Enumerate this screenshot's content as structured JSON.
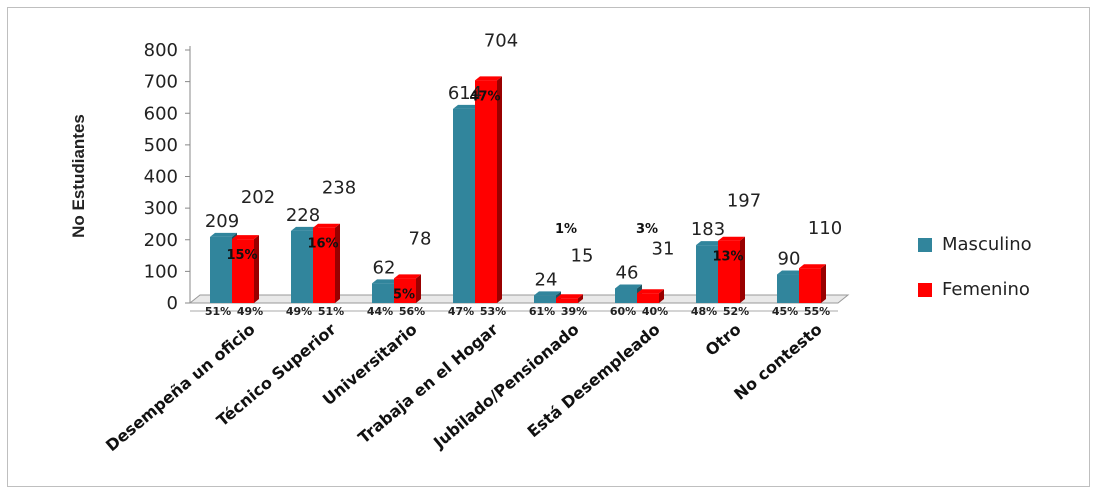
{
  "chart_data": {
    "type": "bar",
    "ylabel": "No Estudiantes",
    "ylim": [
      0,
      800
    ],
    "yticks": [
      "0",
      "100",
      "200",
      "300",
      "400",
      "500",
      "600",
      "700",
      "800"
    ],
    "categories": [
      "Desempeña un oficio",
      "Técnico Superior",
      "Universitario",
      "Trabaja en el Hogar",
      "Jubilado/Pensionado",
      "Está Desempleado",
      "Otro",
      "No contesto"
    ],
    "series": [
      {
        "name": "Masculino",
        "color": "#31859c",
        "values": [
          209,
          228,
          62,
          614,
          24,
          46,
          183,
          90
        ],
        "value_labels": [
          "209",
          "228",
          "62",
          "614",
          "24",
          "46",
          "183",
          "90"
        ],
        "pct_labels": [
          "51%",
          "49%",
          "44%",
          "47%",
          "61%",
          "60%",
          "48%",
          "45%"
        ]
      },
      {
        "name": "Femenino",
        "color": "#ff0000",
        "values": [
          202,
          238,
          78,
          704,
          15,
          31,
          197,
          110
        ],
        "value_labels": [
          "202",
          "238",
          "78",
          "704",
          "15",
          "31",
          "197",
          "110"
        ],
        "pct_labels": [
          "49%",
          "51%",
          "56%",
          "53%",
          "39%",
          "40%",
          "52%",
          "55%"
        ]
      }
    ],
    "inner_labels": [
      "15%",
      "16%",
      "5%",
      "47%",
      "1%",
      "3%",
      "13%",
      ""
    ],
    "grid": false,
    "legend_position": "right",
    "style": "3d-column"
  }
}
